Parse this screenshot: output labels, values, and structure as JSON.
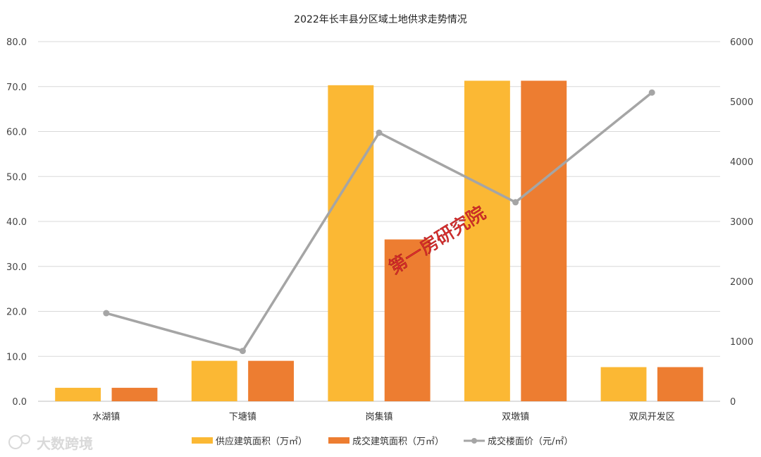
{
  "chart_data": {
    "type": "bar",
    "title": "2022年长丰县分区域土地供求走势情况",
    "categories": [
      "水湖镇",
      "下塘镇",
      "岗集镇",
      "双墩镇",
      "双凤开发区"
    ],
    "series": [
      {
        "name": "供应建筑面积（万㎡）",
        "kind": "bar",
        "axis": "left",
        "color": "#FBB834",
        "values": [
          3.0,
          9.0,
          70.3,
          71.3,
          7.6
        ]
      },
      {
        "name": "成交建筑面积（万㎡）",
        "kind": "bar",
        "axis": "left",
        "color": "#ED7D31",
        "values": [
          3.0,
          9.0,
          36.0,
          71.3,
          7.6
        ]
      },
      {
        "name": "成交楼面价（元/㎡）",
        "kind": "line",
        "axis": "right",
        "color": "#A5A5A5",
        "values": [
          1470,
          840,
          4480,
          3320,
          5150
        ]
      }
    ],
    "y_left": {
      "range": [
        0,
        80
      ],
      "ticks": [
        "0.0",
        "10.0",
        "20.0",
        "30.0",
        "40.0",
        "50.0",
        "60.0",
        "70.0",
        "80.0"
      ]
    },
    "y_right": {
      "range": [
        0,
        6000
      ],
      "ticks": [
        "0",
        "1000",
        "2000",
        "3000",
        "4000",
        "5000",
        "6000"
      ]
    },
    "grid": true,
    "legend_position": "bottom",
    "watermark": "第一房研究院",
    "brand_text": "大数跨境"
  }
}
